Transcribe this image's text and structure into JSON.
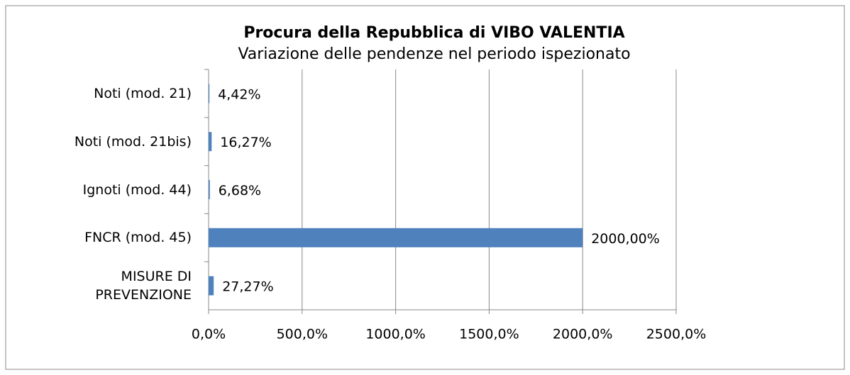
{
  "chart_data": {
    "type": "bar",
    "orientation": "horizontal",
    "title": "Procura della Repubblica di VIBO VALENTIA",
    "subtitle": "Variazione delle pendenze nel periodo ispezionato",
    "categories": [
      "Noti (mod. 21)",
      "Noti (mod. 21bis)",
      "Ignoti (mod. 44)",
      "FNCR (mod. 45)",
      "MISURE DI\nPREVENZIONE"
    ],
    "values": [
      4.42,
      16.27,
      6.68,
      2000,
      27.27
    ],
    "value_labels": [
      "4,42%",
      "16,27%",
      "6,68%",
      "2000,00%",
      "27,27%"
    ],
    "color": "#4f81bd",
    "xlim": [
      0,
      2500
    ],
    "xticks": [
      {
        "value": 0,
        "label": "0,0%"
      },
      {
        "value": 500,
        "label": "500,0%"
      },
      {
        "value": 1000,
        "label": "1000,0%"
      },
      {
        "value": 1500,
        "label": "1500,0%"
      },
      {
        "value": 2000,
        "label": "2000,0%"
      },
      {
        "value": 2500,
        "label": "2500,0%"
      }
    ],
    "grid": true
  }
}
